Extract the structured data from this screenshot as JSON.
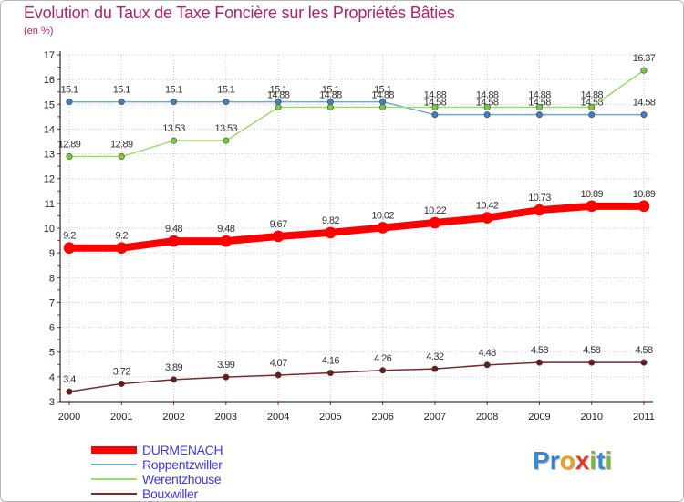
{
  "header": {
    "title": "Evolution du Taux de Taxe Foncière sur les Propriétés Bâties",
    "unit": "(en %)"
  },
  "logo": {
    "text": "Proxiti",
    "letters": [
      "P",
      "r",
      "o",
      "x",
      "i",
      "t",
      "i"
    ],
    "colors": [
      "#3a8ad0",
      "#2f7fcb",
      "#e8a020",
      "#e23b2b",
      "#7bb83a",
      "#3a8ad0",
      "#7bb83a"
    ]
  },
  "colors": {
    "background": "#ffffff",
    "grid": "#c8c8c8",
    "axis": "#000000",
    "title": "#b0246c",
    "legend_text": "#3a3ae0"
  },
  "chart_data": {
    "type": "line",
    "title": "Evolution du Taux de Taxe Foncière sur les Propriétés Bâties",
    "ylabel": "(en %)",
    "xlabel": "",
    "ylim": [
      3,
      17
    ],
    "yticks": [
      3,
      4,
      5,
      6,
      7,
      8,
      9,
      10,
      11,
      12,
      13,
      14,
      15,
      16,
      17
    ],
    "categories": [
      "2000",
      "2001",
      "2002",
      "2003",
      "2004",
      "2005",
      "2006",
      "2007",
      "2008",
      "2009",
      "2010",
      "2011"
    ],
    "grid": true,
    "legend_position": "bottom-left",
    "series": [
      {
        "name": "DURMENACH",
        "color": "#ff0000",
        "marker_color": "#ff0000",
        "width": 8,
        "values": [
          9.2,
          9.2,
          9.48,
          9.48,
          9.67,
          9.82,
          10.02,
          10.22,
          10.42,
          10.73,
          10.89,
          10.89
        ],
        "labels": [
          "9.2",
          "9.2",
          "9.48",
          "9.48",
          "9.67",
          "9.82",
          "10.02",
          "10.22",
          "10.42",
          "10.73",
          "10.89",
          "10.89"
        ]
      },
      {
        "name": "Roppentzwiller",
        "color": "#6fa6d8",
        "marker_color": "#3a7fc8",
        "width": 1.5,
        "values": [
          15.1,
          15.1,
          15.1,
          15.1,
          15.1,
          15.1,
          15.1,
          14.58,
          14.58,
          14.58,
          14.58,
          14.58
        ],
        "labels": [
          "15.1",
          "15.1",
          "15.1",
          "15.1",
          "15.1",
          "15.1",
          "15.1",
          "14.58",
          "14.58",
          "14.58",
          "14.58",
          "14.58"
        ]
      },
      {
        "name": "Werentzhouse",
        "color": "#99dd66",
        "marker_color": "#77cc33",
        "width": 1.5,
        "values": [
          12.89,
          12.89,
          13.53,
          13.53,
          14.88,
          14.88,
          14.88,
          14.88,
          14.88,
          14.88,
          14.88,
          16.37
        ],
        "labels": [
          "12.89",
          "12.89",
          "13.53",
          "13.53",
          "14.88",
          "14.88",
          "14.88",
          "14.88",
          "14.88",
          "14.88",
          "14.88",
          "16.37"
        ]
      },
      {
        "name": "Bouxwiller",
        "color": "#7a2a2a",
        "marker_color": "#6a1a1a",
        "width": 1.5,
        "values": [
          3.4,
          3.72,
          3.89,
          3.99,
          4.07,
          4.16,
          4.26,
          4.32,
          4.48,
          4.58,
          4.58,
          4.58
        ],
        "labels": [
          "3.4",
          "3.72",
          "3.89",
          "3.99",
          "4.07",
          "4.16",
          "4.26",
          "4.32",
          "4.48",
          "4.58",
          "4.58",
          "4.58"
        ]
      }
    ]
  }
}
